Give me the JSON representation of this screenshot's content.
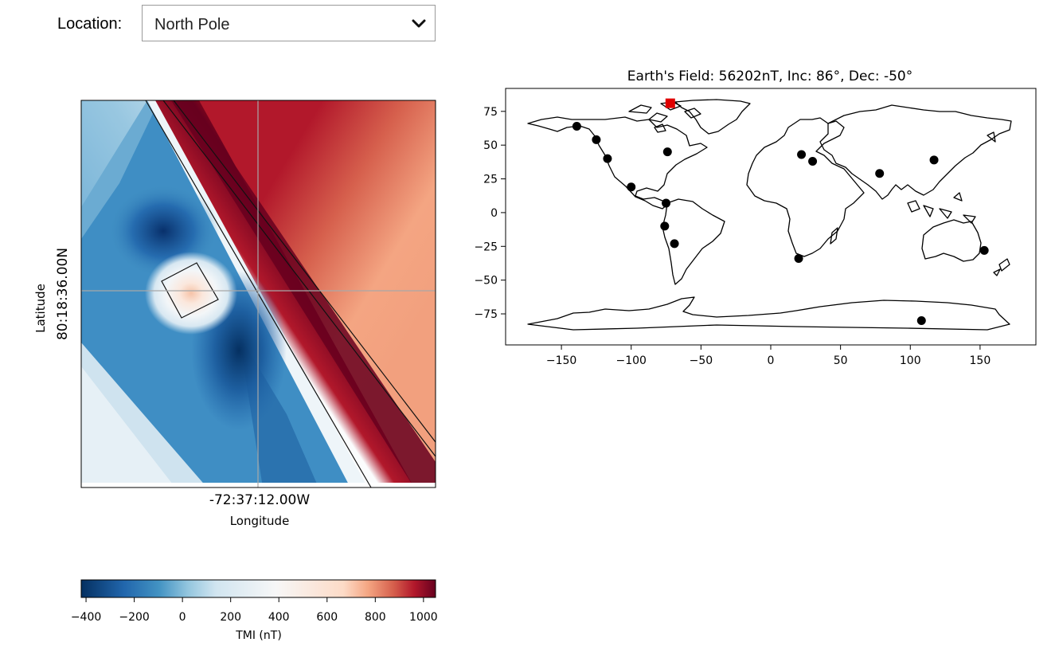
{
  "location_control": {
    "label": "Location:",
    "selected": "North Pole",
    "icon": "chevron-down-icon"
  },
  "anomaly_map": {
    "ylabel": "Latitude",
    "ylabel_value": "80:18:36.00N",
    "xlabel": "Longitude",
    "xlabel_value": "-72:37:12.00W"
  },
  "colorbar": {
    "label": "TMI (nT)",
    "ticks": [
      "−400",
      "−200",
      "0",
      "200",
      "400",
      "600",
      "800",
      "1000"
    ],
    "tick_values": [
      -400,
      -200,
      0,
      200,
      400,
      600,
      800,
      1000
    ],
    "range": [
      -420,
      1050
    ]
  },
  "chart_data": {
    "type": "scatter",
    "title": "Earth's Field: 56202nT, Inc: 86°, Dec: -50°",
    "xlim": [
      -190,
      190
    ],
    "ylim": [
      -98,
      92
    ],
    "xticks": [
      "−150",
      "−100",
      "−50",
      "0",
      "50",
      "100",
      "150"
    ],
    "xtick_values": [
      -150,
      -100,
      -50,
      0,
      50,
      100,
      150
    ],
    "yticks": [
      "75",
      "50",
      "25",
      "0",
      "−25",
      "−50",
      "−75"
    ],
    "ytick_values": [
      75,
      50,
      25,
      0,
      -25,
      -50,
      -75
    ],
    "points": [
      {
        "x": -139,
        "y": 64
      },
      {
        "x": -125,
        "y": 54
      },
      {
        "x": -117,
        "y": 40
      },
      {
        "x": -100,
        "y": 19
      },
      {
        "x": -74,
        "y": 45
      },
      {
        "x": -75,
        "y": 7
      },
      {
        "x": -76,
        "y": -10
      },
      {
        "x": -69,
        "y": -23
      },
      {
        "x": 20,
        "y": -34
      },
      {
        "x": 22,
        "y": 43
      },
      {
        "x": 30,
        "y": 38
      },
      {
        "x": 78,
        "y": 29
      },
      {
        "x": 117,
        "y": 39
      },
      {
        "x": 153,
        "y": -28
      },
      {
        "x": 108,
        "y": -80
      }
    ],
    "selected_point": {
      "x": -72,
      "y": 81
    },
    "colors": {
      "points": "#000000",
      "selected": "#e00000"
    }
  }
}
